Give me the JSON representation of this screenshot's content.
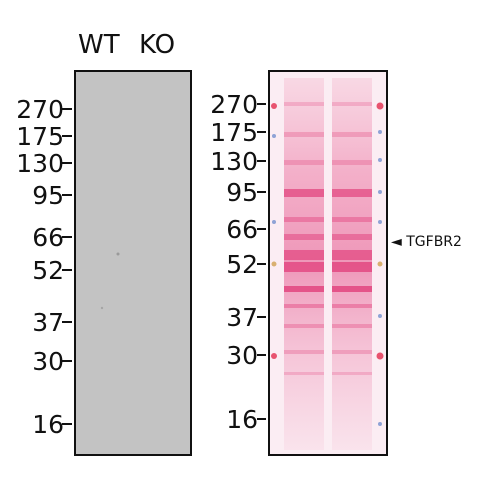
{
  "left_panel": {
    "lane_labels": [
      "WT",
      "KO"
    ]
  },
  "markers": [
    "270",
    "175",
    "130",
    "95",
    "66",
    "52",
    "37",
    "30",
    "16"
  ],
  "target": {
    "arrow": "◄",
    "label": "TGFBR2"
  },
  "colors": {
    "immunoblot_background": "#c4c4c4",
    "ponceau_stain": "#e63a75",
    "frame": "#111111"
  }
}
